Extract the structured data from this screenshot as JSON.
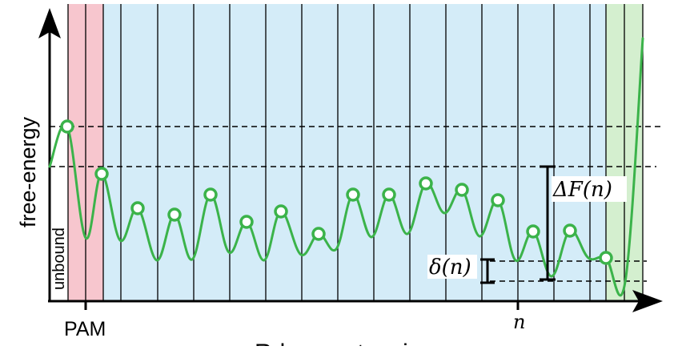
{
  "labels": {
    "y_axis": "free-energy",
    "unbound": "unbound",
    "pam": "PAM",
    "n_tick": "n",
    "delta_F": "ΔF(n)",
    "delta_small": "δ(n)",
    "x_axis_partial": "R-loop extension"
  },
  "colors": {
    "pam_region": "#f7c6ce",
    "seed_region": "#d4ecf8",
    "end_region": "#d4efcf",
    "curve": "#3bb34a",
    "axis": "#000000"
  },
  "diagram": {
    "segments": 16,
    "marked_states": 16,
    "dashed_levels": 4
  }
}
